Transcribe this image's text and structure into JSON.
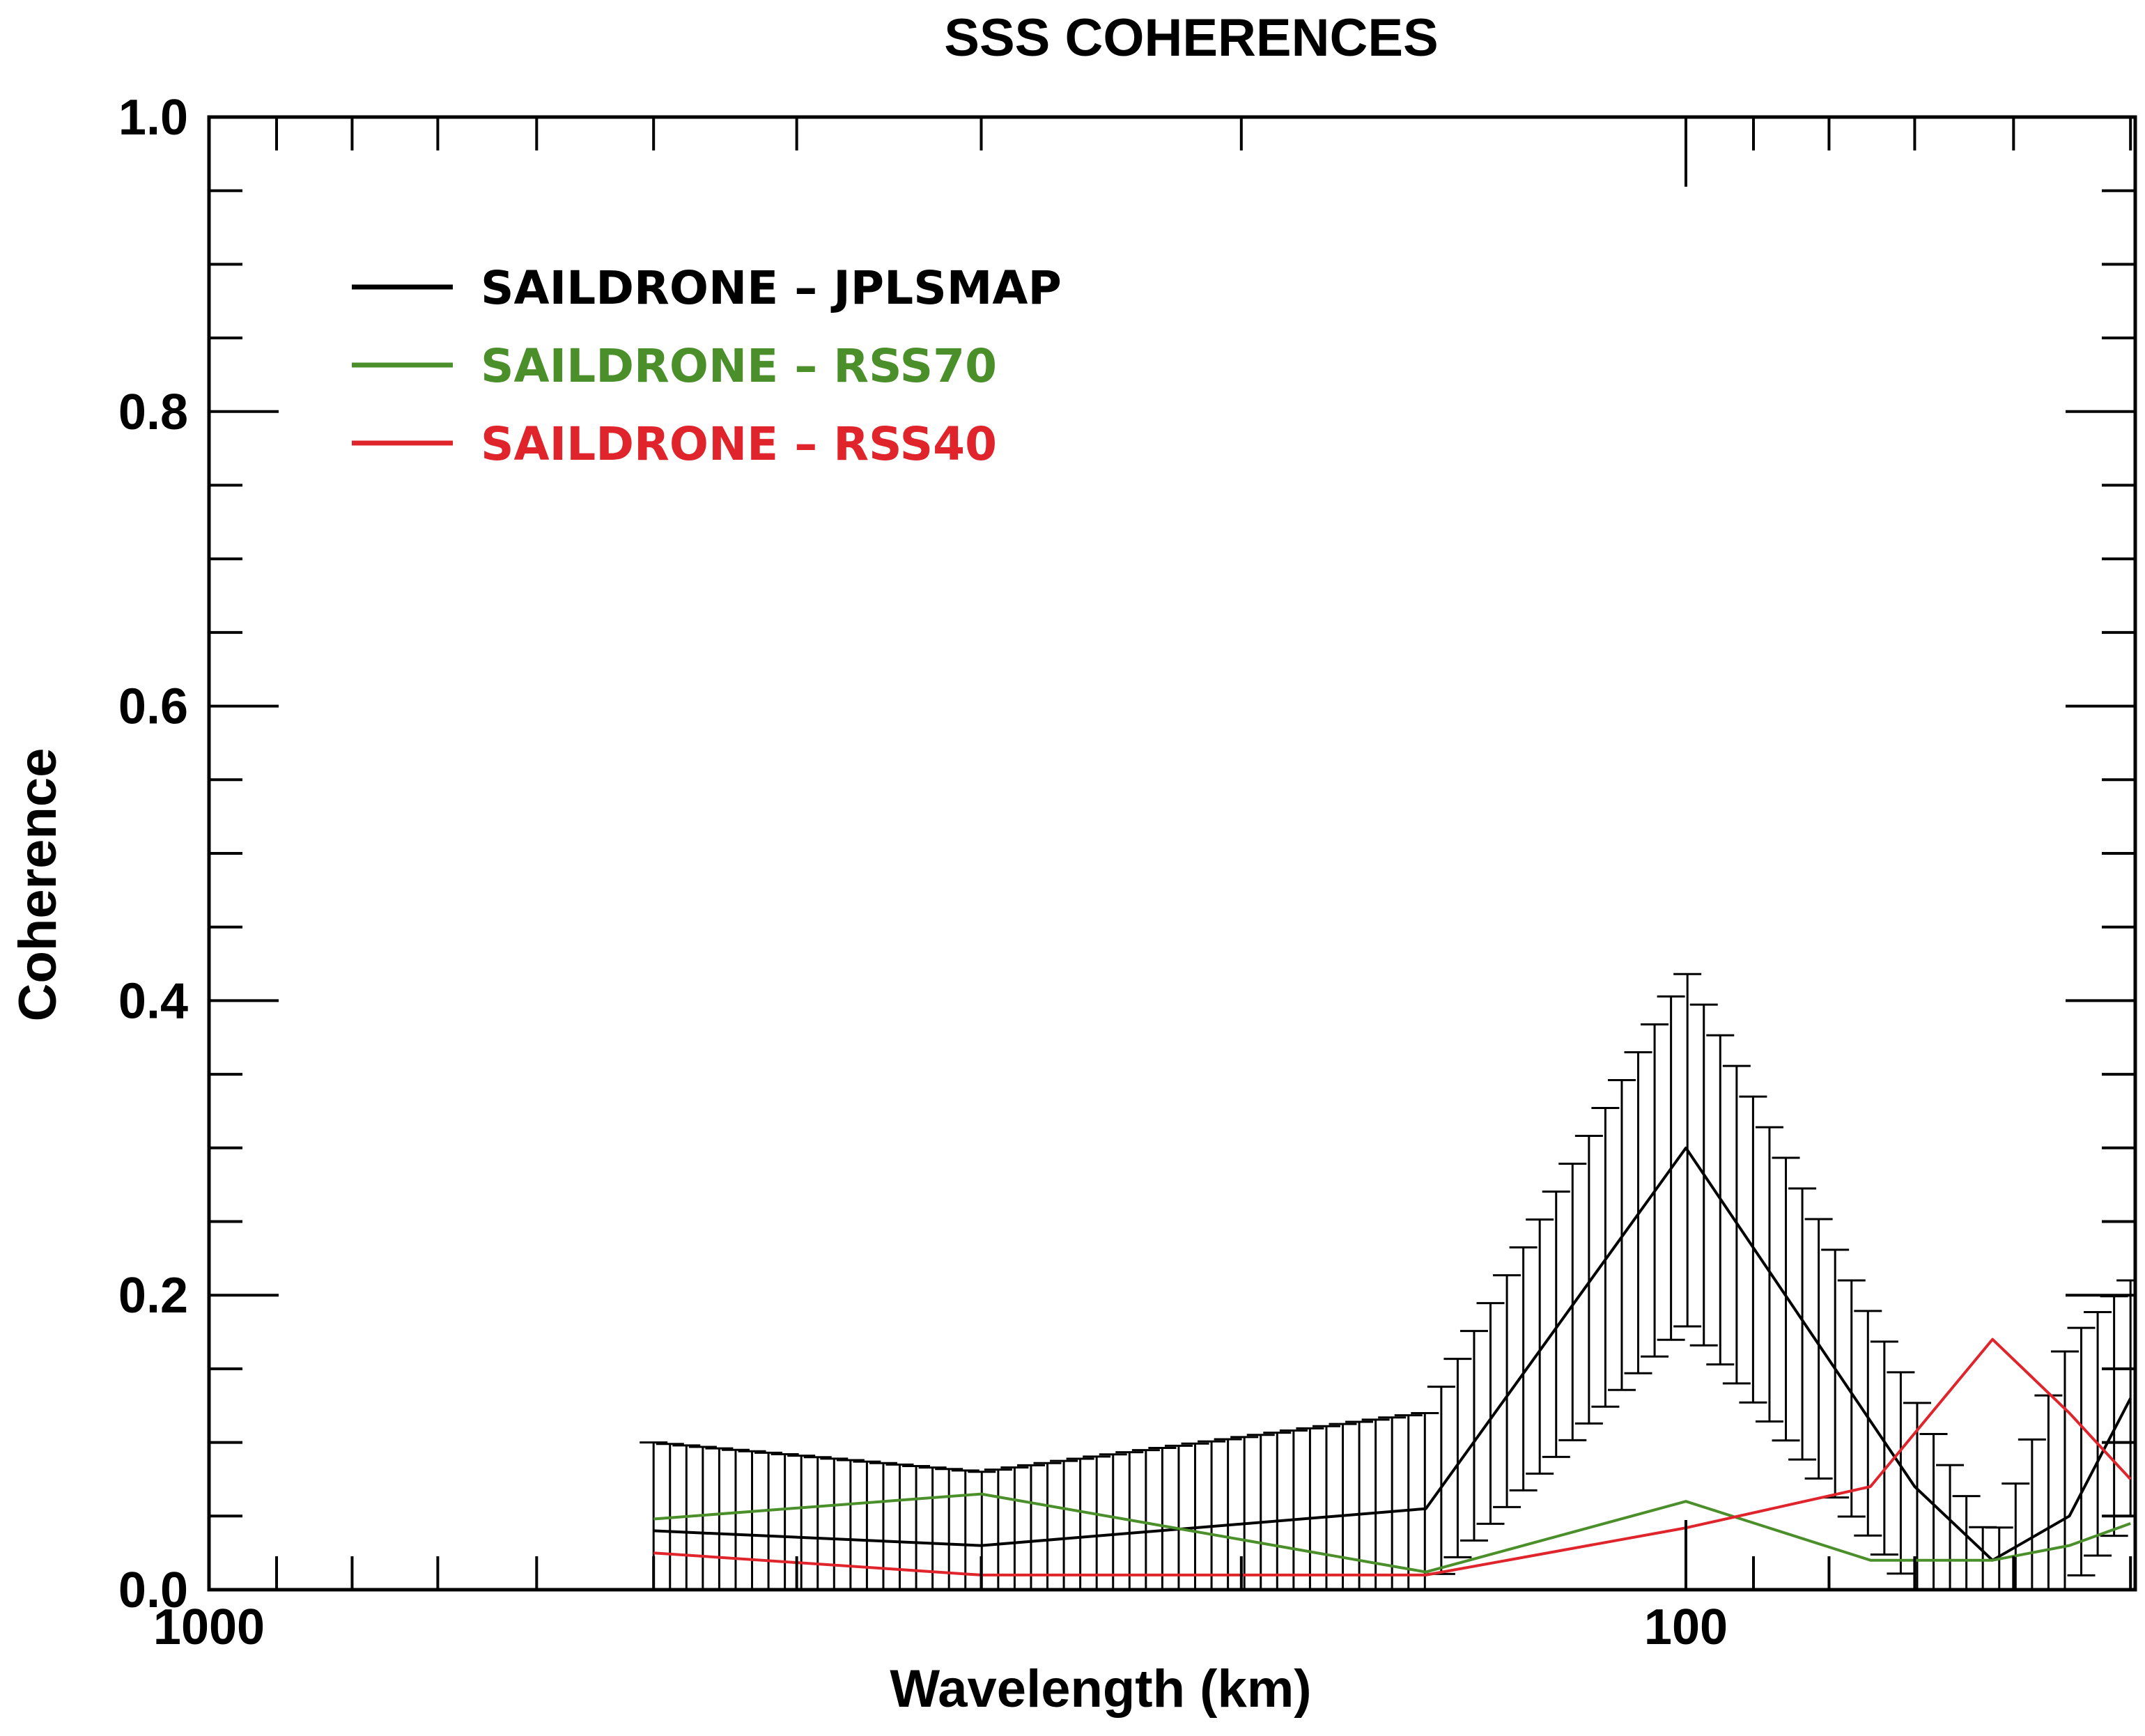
{
  "chart_data": {
    "type": "line",
    "title": "SSS COHERENCES",
    "xlabel": "Wavelength (km)",
    "ylabel": "Coherence",
    "x_scale": "log-reversed",
    "xlim": [
      1000,
      50
    ],
    "ylim": [
      0,
      1.0
    ],
    "x_tick_labels": [
      {
        "value": 1000,
        "label": "1000"
      },
      {
        "value": 100,
        "label": "100"
      }
    ],
    "y_tick_labels": [
      {
        "value": 0.0,
        "label": "0.0"
      },
      {
        "value": 0.2,
        "label": "0.2"
      },
      {
        "value": 0.4,
        "label": "0.4"
      },
      {
        "value": 0.6,
        "label": "0.6"
      },
      {
        "value": 0.8,
        "label": "0.8"
      },
      {
        "value": 1.0,
        "label": "1.0"
      }
    ],
    "y_minor_step": 0.05,
    "grid": false,
    "legend_position": "top-left",
    "series": [
      {
        "name": "SAILDRONE – JPLSMAP",
        "color": "#000000",
        "x": [
          500,
          300,
          150,
          100,
          70,
          62,
          55,
          50
        ],
        "y": [
          0.04,
          0.03,
          0.055,
          0.3,
          0.07,
          0.02,
          0.05,
          0.13
        ],
        "error_bars": {
          "x": [
            500,
            300,
            150,
            100,
            70,
            62,
            55,
            50
          ],
          "upper": [
            0.1,
            0.08,
            0.12,
            0.42,
            0.13,
            0.03,
            0.17,
            0.21
          ],
          "lower": [
            0.0,
            0.0,
            0.0,
            0.18,
            0.0,
            0.0,
            0.0,
            0.05
          ]
        }
      },
      {
        "name": "SAILDRONE – RSS70",
        "color": "#4a8f2a",
        "x": [
          500,
          300,
          150,
          100,
          75,
          62,
          55,
          50
        ],
        "y": [
          0.048,
          0.065,
          0.012,
          0.06,
          0.02,
          0.02,
          0.03,
          0.045
        ]
      },
      {
        "name": "SAILDRONE – RSS40",
        "color": "#e0242b",
        "x": [
          500,
          300,
          150,
          100,
          75,
          62,
          55,
          50
        ],
        "y": [
          0.025,
          0.01,
          0.01,
          0.042,
          0.07,
          0.17,
          0.12,
          0.075
        ]
      }
    ]
  }
}
